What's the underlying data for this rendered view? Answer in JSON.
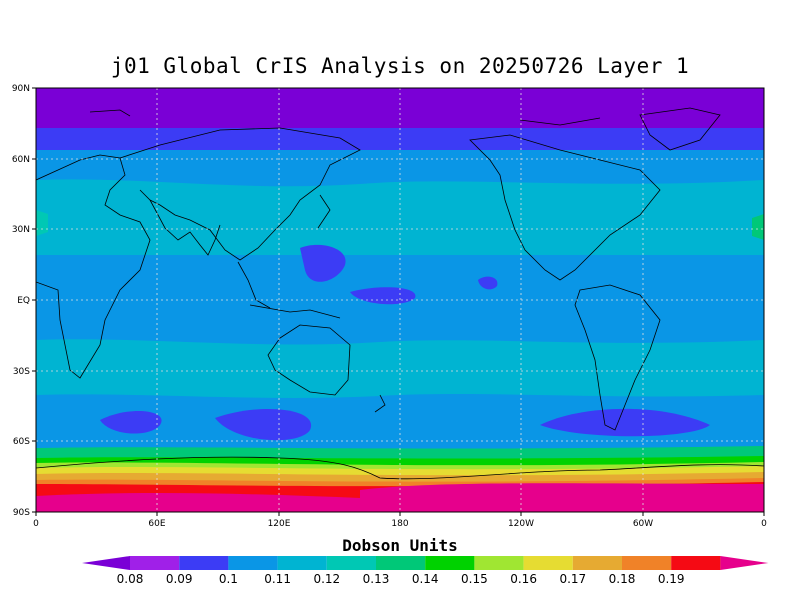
{
  "title": "j01 Global CrIS Analysis on 20250726 Layer 1",
  "map": {
    "lat_labels": [
      "90N",
      "60N",
      "30N",
      "EQ",
      "30S",
      "60S",
      "90S"
    ],
    "lon_labels": [
      "0",
      "60E",
      "120E",
      "180",
      "120W",
      "60W",
      "0"
    ]
  },
  "colorbar": {
    "title": "Dobson Units",
    "labels": [
      "0.08",
      "0.09",
      "0.1",
      "0.11",
      "0.12",
      "0.13",
      "0.14",
      "0.15",
      "0.16",
      "0.17",
      "0.18",
      "0.19"
    ],
    "colors": [
      "#7a00d6",
      "#a020e8",
      "#3c3cf5",
      "#0a96e6",
      "#00b4d2",
      "#00c8b4",
      "#00c878",
      "#00d200",
      "#a0e632",
      "#e6dc32",
      "#e6aa32",
      "#f08228",
      "#f50a14",
      "#e6008c"
    ]
  },
  "chart_data": {
    "type": "heatmap",
    "title": "j01 Global CrIS Analysis on 20250726 Layer 1",
    "units": "Dobson Units",
    "xlabels": [
      "0",
      "60E",
      "120E",
      "180",
      "120W",
      "60W",
      "0"
    ],
    "ylabels": [
      "90N",
      "60N",
      "30N",
      "EQ",
      "30S",
      "60S",
      "90S"
    ],
    "levels": [
      0.08,
      0.09,
      0.1,
      0.11,
      0.12,
      0.13,
      0.14,
      0.15,
      0.16,
      0.17,
      0.18,
      0.19
    ],
    "zonal_bands": [
      {
        "lat": [
          90,
          78
        ],
        "value_range": "<0.09"
      },
      {
        "lat": [
          78,
          58
        ],
        "value_range": "0.09-0.1"
      },
      {
        "lat": [
          58,
          48
        ],
        "value_range": "0.1-0.11"
      },
      {
        "lat": [
          48,
          22
        ],
        "value_range": "0.11-0.12"
      },
      {
        "lat": [
          22,
          -18
        ],
        "value_range": "0.11-0.12"
      },
      {
        "lat": [
          -18,
          -38
        ],
        "value_range": "0.11-0.12"
      },
      {
        "lat": [
          -38,
          -48
        ],
        "value_range": "0.1-0.11"
      },
      {
        "lat": [
          -48,
          -62
        ],
        "value_range": "0.09-0.11"
      },
      {
        "lat": [
          -62,
          -70
        ],
        "value_range": "0.12-0.16"
      },
      {
        "lat": [
          -70,
          -78
        ],
        "value_range": "0.16-0.18"
      },
      {
        "lat": [
          -78,
          -90
        ],
        "value_range": "0.18->0.19"
      }
    ],
    "grid": true
  }
}
